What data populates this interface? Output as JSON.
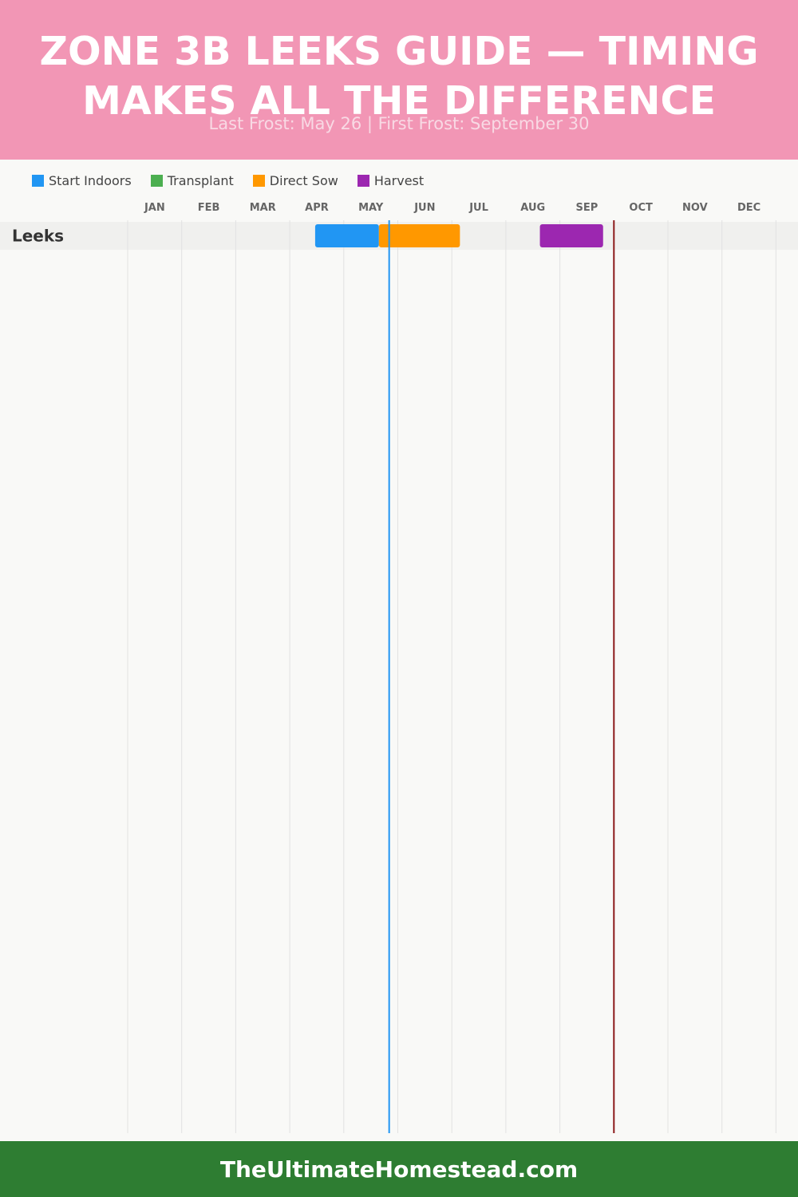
{
  "header": {
    "title_line1": "ZONE 3B LEEKS GUIDE — TIMING",
    "title_line2": "MAKES ALL THE DIFFERENCE",
    "subtitle": "Last Frost: May 26 | First Frost: September 30"
  },
  "legend": [
    {
      "label": "Start Indoors",
      "color": "#2196f3"
    },
    {
      "label": "Transplant",
      "color": "#4caf50"
    },
    {
      "label": "Direct Sow",
      "color": "#ff9800"
    },
    {
      "label": "Harvest",
      "color": "#9c27b0"
    }
  ],
  "chart_data": {
    "type": "gantt",
    "months": [
      "JAN",
      "FEB",
      "MAR",
      "APR",
      "MAY",
      "JUN",
      "JUL",
      "AUG",
      "SEP",
      "OCT",
      "NOV",
      "DEC"
    ],
    "rows": [
      {
        "name": "Leeks",
        "bars": [
          {
            "phase": "Start Indoors",
            "start_month": 4.47,
            "end_month": 5.65,
            "color": "#2196f3"
          },
          {
            "phase": "Direct Sow",
            "start_month": 5.65,
            "end_month": 7.15,
            "color": "#ff9800"
          },
          {
            "phase": "Harvest",
            "start_month": 8.63,
            "end_month": 9.8,
            "color": "#9c27b0"
          }
        ]
      }
    ],
    "markers": [
      {
        "label": "Last Frost",
        "month": 5.84,
        "color": "#2196f3"
      },
      {
        "label": "First Frost",
        "month": 10.0,
        "color": "#8b1a1a"
      }
    ]
  },
  "footer": {
    "site": "TheUltimateHomestead.com"
  }
}
